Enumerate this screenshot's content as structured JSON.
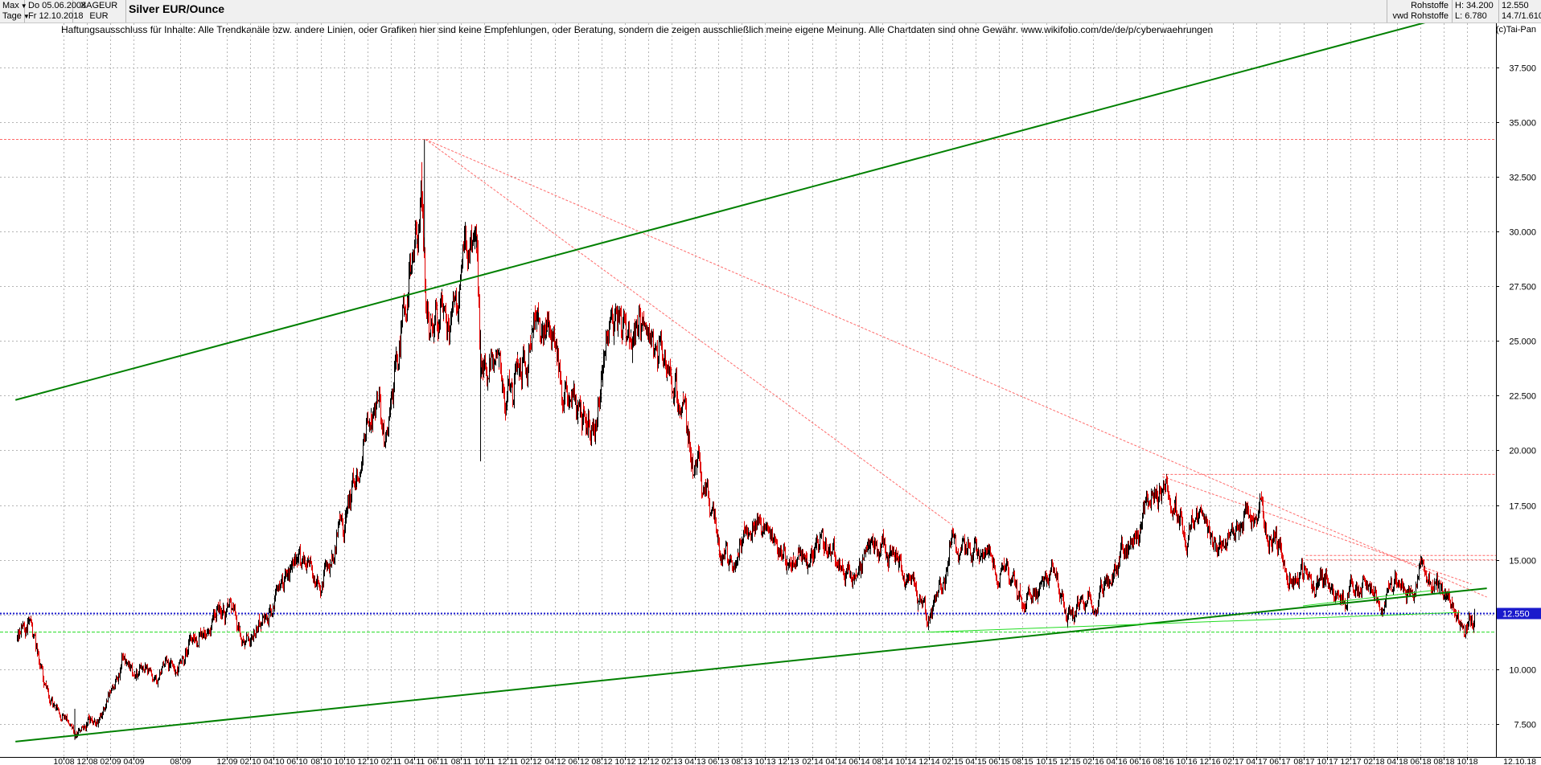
{
  "header": {
    "period": "Max",
    "interval": "Tage",
    "date_from": "Do 05.06.2008",
    "date_to": "Fr 12.10.2018",
    "symbol": "XAGEUR",
    "currency": "EUR",
    "title": "Silver EUR/Ounce",
    "category": "Rohstoffe",
    "source": "vwd Rohstoffe",
    "high": "H: 34.200",
    "low": "L: 6.780",
    "last": "12.550",
    "extra": "14.7/1.610"
  },
  "disclaimer": "Haftungsausschluss für Inhalte: Alle Trendkanäle bzw. andere Linien, oder Grafiken hier sind keine Empfehlungen, oder Beratung, sondern die zeigen ausschließlich meine eigene Meinung. Alle Chartdaten sind ohne Gewähr.  www.wikifolio.com/de/de/p/cyberwaehrungen",
  "copyright": "(c)Tai-Pan",
  "colors": {
    "candle_up": "#000000",
    "candle_down": "#e00000",
    "trend_main": "#008000",
    "trend_secondary": "#22dd22",
    "resistance": "#ff6a6a",
    "current_level": "#1a1acc",
    "grid": "#b4b4b4",
    "last_price_bg": "#1a1acc"
  },
  "chart_data": {
    "type": "candlestick",
    "title": "Silver EUR/Ounce",
    "xlabel": "",
    "ylabel": "",
    "ylim": [
      6.0,
      39.5
    ],
    "grid": true,
    "last_price": 12.55,
    "last_price_label": "12.550",
    "y_ticks": [
      "7.500",
      "10.000",
      "12.500",
      "15.000",
      "17.500",
      "20.000",
      "22.500",
      "25.000",
      "27.500",
      "30.000",
      "32.500",
      "35.000",
      "37.500"
    ],
    "x_tick_labels": [
      "10.08",
      "12.08",
      "02.09",
      "04.09",
      "08.09",
      "12.09",
      "02.10",
      "04.10",
      "06.10",
      "08.10",
      "10.10",
      "12.10",
      "02.11",
      "04.11",
      "06.11",
      "08.11",
      "10.11",
      "12.11",
      "02.12",
      "04.12",
      "06.12",
      "08.12",
      "10.12",
      "12.12",
      "02.13",
      "04.13",
      "06.13",
      "08.13",
      "10.13",
      "12.13",
      "02.14",
      "04.14",
      "06.14",
      "08.14",
      "10.14",
      "12.14",
      "02.15",
      "04.15",
      "06.15",
      "08.15",
      "10.15",
      "12.15",
      "02.16",
      "04.16",
      "06.16",
      "08.16",
      "10.16",
      "12.16",
      "02.17",
      "04.17",
      "06.17",
      "08.17",
      "10.17",
      "12.17",
      "02.18",
      "04.18",
      "06.18",
      "08.18",
      "10.18"
    ],
    "x_end_label": "12.10.18",
    "price_path": [
      [
        2008.42,
        11.4
      ],
      [
        2008.5,
        12.1
      ],
      [
        2008.6,
        9.5
      ],
      [
        2008.7,
        8.2
      ],
      [
        2008.78,
        7.8
      ],
      [
        2008.85,
        7.1
      ],
      [
        2008.92,
        8.0
      ],
      [
        2009.0,
        7.7
      ],
      [
        2009.08,
        8.6
      ],
      [
        2009.17,
        10.5
      ],
      [
        2009.25,
        9.5
      ],
      [
        2009.33,
        10.4
      ],
      [
        2009.42,
        10.2
      ],
      [
        2009.5,
        9.8
      ],
      [
        2009.58,
        10.0
      ],
      [
        2009.67,
        11.2
      ],
      [
        2009.75,
        11.8
      ],
      [
        2009.83,
        12.4
      ],
      [
        2009.92,
        12.6
      ],
      [
        2010.0,
        11.8
      ],
      [
        2010.08,
        11.2
      ],
      [
        2010.17,
        12.3
      ],
      [
        2010.25,
        13.2
      ],
      [
        2010.33,
        14.5
      ],
      [
        2010.42,
        15.5
      ],
      [
        2010.5,
        14.7
      ],
      [
        2010.58,
        14.0
      ],
      [
        2010.67,
        15.5
      ],
      [
        2010.75,
        16.6
      ],
      [
        2010.83,
        18.5
      ],
      [
        2010.92,
        21.5
      ],
      [
        2011.0,
        22.3
      ],
      [
        2011.05,
        20.5
      ],
      [
        2011.1,
        23.0
      ],
      [
        2011.17,
        25.5
      ],
      [
        2011.22,
        27.5
      ],
      [
        2011.3,
        32.2
      ],
      [
        2011.33,
        25.5
      ],
      [
        2011.4,
        26.0
      ],
      [
        2011.5,
        25.0
      ],
      [
        2011.58,
        27.5
      ],
      [
        2011.65,
        30.0
      ],
      [
        2011.7,
        28.5
      ],
      [
        2011.72,
        23.0
      ],
      [
        2011.78,
        22.5
      ],
      [
        2011.85,
        24.5
      ],
      [
        2011.95,
        23.0
      ],
      [
        2012.05,
        24.5
      ],
      [
        2012.12,
        26.5
      ],
      [
        2012.2,
        25.0
      ],
      [
        2012.3,
        24.0
      ],
      [
        2012.4,
        22.0
      ],
      [
        2012.5,
        21.8
      ],
      [
        2012.58,
        23.0
      ],
      [
        2012.67,
        25.5
      ],
      [
        2012.72,
        26.8
      ],
      [
        2012.8,
        25.0
      ],
      [
        2012.88,
        25.5
      ],
      [
        2012.95,
        23.5
      ],
      [
        2013.02,
        24.0
      ],
      [
        2013.1,
        23.0
      ],
      [
        2013.17,
        22.5
      ],
      [
        2013.25,
        19.5
      ],
      [
        2013.33,
        18.0
      ],
      [
        2013.42,
        16.0
      ],
      [
        2013.5,
        14.5
      ],
      [
        2013.6,
        16.5
      ],
      [
        2013.67,
        18.0
      ],
      [
        2013.75,
        16.5
      ],
      [
        2013.85,
        15.5
      ],
      [
        2013.95,
        15.0
      ],
      [
        2014.08,
        15.5
      ],
      [
        2014.17,
        16.0
      ],
      [
        2014.25,
        15.0
      ],
      [
        2014.4,
        14.5
      ],
      [
        2014.55,
        15.8
      ],
      [
        2014.67,
        15.0
      ],
      [
        2014.8,
        13.5
      ],
      [
        2014.9,
        12.5
      ],
      [
        2015.0,
        13.5
      ],
      [
        2015.08,
        15.5
      ],
      [
        2015.2,
        15.0
      ],
      [
        2015.35,
        15.0
      ],
      [
        2015.5,
        14.0
      ],
      [
        2015.6,
        13.0
      ],
      [
        2015.7,
        13.5
      ],
      [
        2015.8,
        14.0
      ],
      [
        2015.9,
        13.0
      ],
      [
        2016.0,
        13.0
      ],
      [
        2016.1,
        13.5
      ],
      [
        2016.2,
        14.5
      ],
      [
        2016.35,
        15.5
      ],
      [
        2016.5,
        18.0
      ],
      [
        2016.58,
        18.5
      ],
      [
        2016.7,
        17.5
      ],
      [
        2016.8,
        16.5
      ],
      [
        2016.9,
        15.5
      ],
      [
        2017.0,
        15.5
      ],
      [
        2017.1,
        16.5
      ],
      [
        2017.2,
        17.0
      ],
      [
        2017.28,
        17.3
      ],
      [
        2017.35,
        16.0
      ],
      [
        2017.45,
        15.0
      ],
      [
        2017.55,
        14.5
      ],
      [
        2017.65,
        14.0
      ],
      [
        2017.75,
        14.2
      ],
      [
        2017.85,
        14.0
      ],
      [
        2017.95,
        13.5
      ],
      [
        2018.05,
        13.8
      ],
      [
        2018.15,
        13.5
      ],
      [
        2018.25,
        13.5
      ],
      [
        2018.35,
        13.5
      ],
      [
        2018.45,
        14.0
      ],
      [
        2018.5,
        14.8
      ],
      [
        2018.58,
        13.5
      ],
      [
        2018.65,
        13.0
      ],
      [
        2018.72,
        12.2
      ],
      [
        2018.78,
        12.3
      ],
      [
        2018.8,
        12.55
      ]
    ],
    "price_high": 34.2,
    "price_low": 6.78,
    "trend_lines": [
      {
        "style": "main",
        "points": [
          [
            2008.41,
            22.3
          ],
          [
            2018.78,
            40.1
          ]
        ]
      },
      {
        "style": "main",
        "points": [
          [
            2008.41,
            6.7
          ],
          [
            2018.89,
            13.7
          ]
        ]
      },
      {
        "style": "secondary",
        "points": [
          [
            2014.92,
            11.7
          ],
          [
            2018.7,
            12.6
          ]
        ]
      },
      {
        "style": "secondary",
        "points": [
          [
            2017.58,
            12.9
          ],
          [
            2018.5,
            13.6
          ]
        ]
      },
      {
        "style": "resistance",
        "points": [
          [
            2011.33,
            34.2
          ],
          [
            2018.89,
            13.3
          ]
        ]
      },
      {
        "style": "resistance",
        "points": [
          [
            2011.33,
            34.2
          ],
          [
            2015.08,
            16.6
          ]
        ]
      },
      {
        "style": "resistance",
        "points": [
          [
            2016.58,
            18.8
          ],
          [
            2018.78,
            13.9
          ]
        ]
      }
    ],
    "horizontal_levels": [
      {
        "style": "resistance",
        "value": 34.2
      },
      {
        "style": "resistance",
        "value": 18.9
      },
      {
        "style": "resistance",
        "value": 15.2
      },
      {
        "style": "resistance",
        "value": 15.0
      },
      {
        "style": "current",
        "value": 12.55
      },
      {
        "style": "support",
        "value": 11.7
      }
    ]
  }
}
